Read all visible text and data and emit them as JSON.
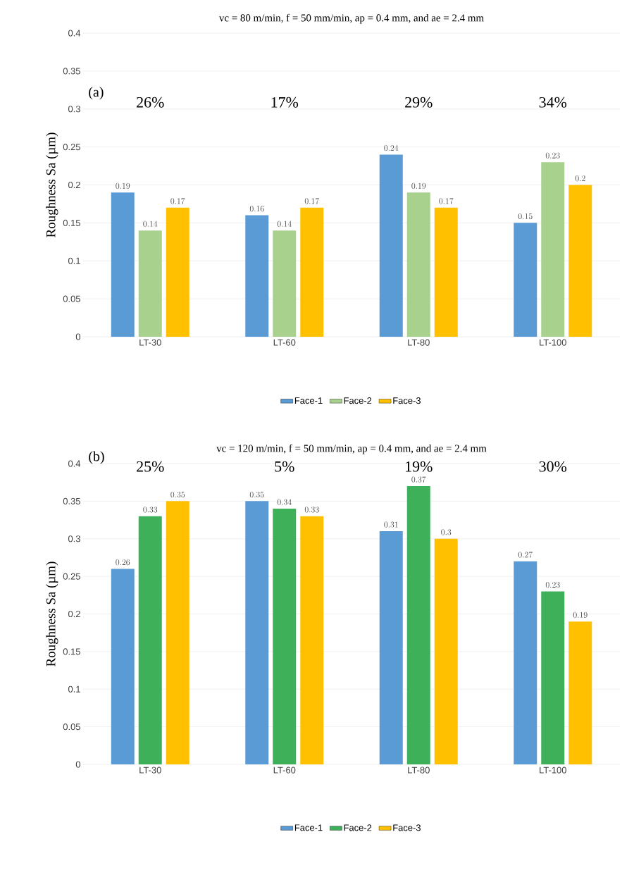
{
  "chart_data": [
    {
      "type": "bar",
      "title": "vc = 80 m/min,  f = 50 mm/min,  ap = 0.4 mm, and ae = 2.4 mm",
      "ylabel": "Roughness  Sa (µm)",
      "categories": [
        "LT-30",
        "LT-60",
        "LT-80",
        "LT-100"
      ],
      "series": [
        {
          "name": "Face-1",
          "color": "#5b9bd5",
          "values": [
            0.19,
            0.16,
            0.24,
            0.15
          ]
        },
        {
          "name": "Face-2",
          "color": "#a9d18e",
          "values": [
            0.14,
            0.14,
            0.19,
            0.23
          ]
        },
        {
          "name": "Face-3",
          "color": "#ffc000",
          "values": [
            0.17,
            0.17,
            0.17,
            0.2
          ]
        }
      ],
      "ylim": [
        0,
        0.4
      ],
      "yticks": [
        0,
        0.05,
        0.1,
        0.15,
        0.2,
        0.25,
        0.3,
        0.35,
        0.4
      ],
      "grid": "y",
      "legend": "bottom",
      "data_labels": true,
      "annotations": [
        "(a)",
        "26%",
        "17%",
        "29%",
        "34%"
      ]
    },
    {
      "type": "bar",
      "title": "vc = 120 m/min,  f = 50 mm/min,  ap = 0.4 mm, and ae = 2.4 mm",
      "ylabel": "Roughness  Sa (µm)",
      "categories": [
        "LT-30",
        "LT-60",
        "LT-80",
        "LT-100"
      ],
      "series": [
        {
          "name": "Face-1",
          "color": "#5b9bd5",
          "values": [
            0.26,
            0.35,
            0.31,
            0.27
          ]
        },
        {
          "name": "Face-2",
          "color": "#3fb05a",
          "values": [
            0.33,
            0.34,
            0.37,
            0.23
          ]
        },
        {
          "name": "Face-3",
          "color": "#ffc000",
          "values": [
            0.35,
            0.33,
            0.3,
            0.19
          ]
        }
      ],
      "ylim": [
        0,
        0.4
      ],
      "yticks": [
        0,
        0.05,
        0.1,
        0.15,
        0.2,
        0.25,
        0.3,
        0.35,
        0.4
      ],
      "grid": "y",
      "legend": "bottom",
      "data_labels": true,
      "annotations": [
        "(b)",
        "25%",
        "5%",
        "19%",
        "30%"
      ]
    }
  ]
}
